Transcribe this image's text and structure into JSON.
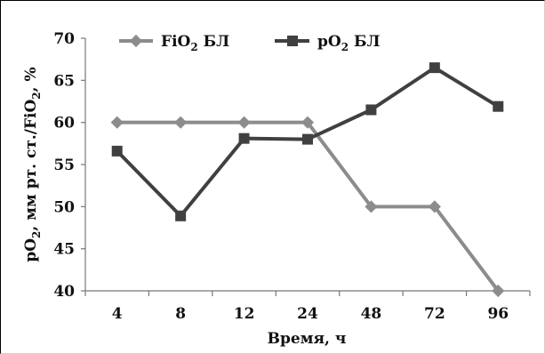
{
  "chart_data": {
    "type": "line",
    "x": [
      "4",
      "8",
      "12",
      "24",
      "48",
      "72",
      "96"
    ],
    "series": [
      {
        "name": "FiO₂ БЛ",
        "name_main": "FiO",
        "name_sub": "2",
        "name_tail": " БЛ",
        "values": [
          60,
          60,
          60,
          60,
          50,
          50,
          40
        ],
        "color": "#8c8c8c",
        "marker": "diamond"
      },
      {
        "name": "pO₂ БЛ",
        "name_main": "pO",
        "name_sub": "2",
        "name_tail": " БЛ",
        "values": [
          56.6,
          48.9,
          58.1,
          58.0,
          61.5,
          66.5,
          61.9
        ],
        "color": "#404040",
        "marker": "square"
      }
    ],
    "ylim": [
      40,
      70
    ],
    "yticks": [
      40,
      45,
      50,
      55,
      60,
      65,
      70
    ],
    "ylabel": "pO₂, мм рт. ст./FiO₂, %",
    "ylabel_parts": {
      "a": "pO",
      "a_sub": "2",
      "b": ", мм рт. ст./FiO",
      "b_sub": "2",
      "c": ", %"
    },
    "xlabel": "Время, ч",
    "legend": "top-left",
    "grid": false
  }
}
